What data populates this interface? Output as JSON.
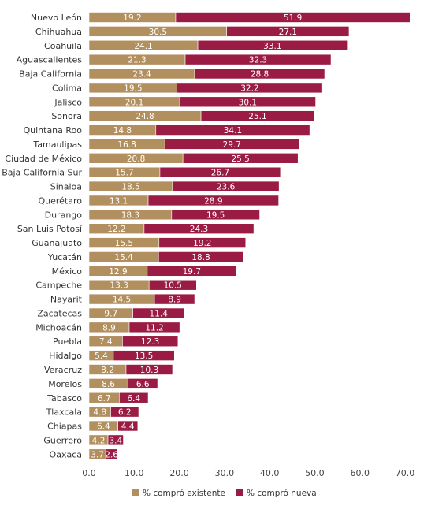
{
  "chart_data": {
    "type": "bar",
    "orientation": "horizontal",
    "stacked": true,
    "categories": [
      "Nuevo León",
      "Chihuahua",
      "Coahuila",
      "Aguascalientes",
      "Baja California",
      "Colima",
      "Jalisco",
      "Sonora",
      "Quintana Roo",
      "Tamaulipas",
      "Ciudad de México",
      "Baja California Sur",
      "Sinaloa",
      "Querétaro",
      "Durango",
      "San Luis Potosí",
      "Guanajuato",
      "Yucatán",
      "México",
      "Campeche",
      "Nayarit",
      "Zacatecas",
      "Michoacán",
      "Puebla",
      "Hidalgo",
      "Veracruz",
      "Morelos",
      "Tabasco",
      "Tlaxcala",
      "Chiapas",
      "Guerrero",
      "Oaxaca"
    ],
    "series": [
      {
        "name": "% compró existente",
        "color": "#b28f5e",
        "values": [
          19.2,
          30.5,
          24.1,
          21.3,
          23.4,
          19.5,
          20.1,
          24.8,
          14.8,
          16.8,
          20.8,
          15.7,
          18.5,
          13.1,
          18.3,
          12.2,
          15.5,
          15.4,
          12.9,
          13.3,
          14.5,
          9.7,
          8.9,
          7.4,
          5.4,
          8.2,
          8.6,
          6.7,
          4.8,
          6.4,
          4.2,
          3.7
        ]
      },
      {
        "name": "% compró nueva",
        "color": "#9a1b43",
        "values": [
          51.9,
          27.1,
          33.1,
          32.3,
          28.8,
          32.2,
          30.1,
          25.1,
          34.1,
          29.7,
          25.5,
          26.7,
          23.6,
          28.9,
          19.5,
          24.3,
          19.2,
          18.8,
          19.7,
          10.5,
          8.9,
          11.4,
          11.2,
          12.3,
          13.5,
          10.3,
          6.6,
          6.4,
          6.2,
          4.4,
          3.4,
          2.6
        ]
      }
    ],
    "xlim": [
      0,
      70
    ],
    "xticks": [
      "0.0",
      "10.0",
      "20.0",
      "30.0",
      "40.0",
      "50.0",
      "60.0",
      "70.0"
    ],
    "grid": false,
    "legend_position": "bottom"
  }
}
